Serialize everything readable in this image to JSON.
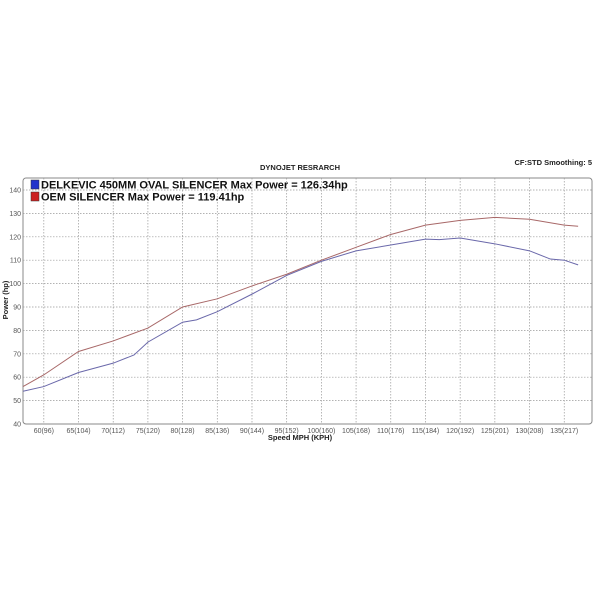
{
  "chart_data": {
    "type": "line",
    "title": "DYNOJET RESRARCH",
    "corner_note": "CF:STD Smoothing: 5",
    "xlabel": "Speed MPH (KPH)",
    "ylabel": "Power (hp)",
    "xlim": [
      57,
      139
    ],
    "ylim": [
      40,
      145
    ],
    "grid": true,
    "legend_placement": "top-left",
    "x_ticks": [
      {
        "v": 60,
        "label": "60(96)"
      },
      {
        "v": 65,
        "label": "65(104)"
      },
      {
        "v": 70,
        "label": "70(112)"
      },
      {
        "v": 75,
        "label": "75(120)"
      },
      {
        "v": 80,
        "label": "80(128)"
      },
      {
        "v": 85,
        "label": "85(136)"
      },
      {
        "v": 90,
        "label": "90(144)"
      },
      {
        "v": 95,
        "label": "95(152)"
      },
      {
        "v": 100,
        "label": "100(160)"
      },
      {
        "v": 105,
        "label": "105(168)"
      },
      {
        "v": 110,
        "label": "110(176)"
      },
      {
        "v": 115,
        "label": "115(184)"
      },
      {
        "v": 120,
        "label": "120(192)"
      },
      {
        "v": 125,
        "label": "125(201)"
      },
      {
        "v": 130,
        "label": "130(208)"
      },
      {
        "v": 135,
        "label": "135(217)"
      }
    ],
    "y_ticks": [
      "40",
      "50",
      "60",
      "70",
      "80",
      "90",
      "100",
      "110",
      "120",
      "130",
      "140"
    ],
    "legend": [
      {
        "label": "DELKEVIC 450MM OVAL SILENCER Max Power = 126.34hp",
        "swatch": "#2233cc"
      },
      {
        "label": "OEM SILENCER Max Power = 119.41hp",
        "swatch": "#cc2222"
      }
    ],
    "series": [
      {
        "color": "#a86868",
        "x": [
          57,
          60,
          65,
          70,
          75,
          80,
          85,
          90,
          95,
          100,
          105,
          110,
          115,
          120,
          125,
          130,
          135,
          137
        ],
        "y": [
          56,
          61,
          71,
          75.5,
          81,
          90,
          93.5,
          99,
          104,
          110,
          115.5,
          121,
          125,
          127,
          128.3,
          127.5,
          125,
          124.5
        ]
      },
      {
        "color": "#6a68aa",
        "x": [
          57,
          60,
          65,
          70,
          73,
          75,
          80,
          82,
          85,
          90,
          95,
          100,
          105,
          110,
          115,
          117,
          120,
          125,
          130,
          133,
          135,
          137
        ],
        "y": [
          54,
          56,
          62,
          66,
          69.5,
          75,
          83.5,
          84.5,
          88,
          95.5,
          103.5,
          109.5,
          114,
          116.5,
          119,
          118.8,
          119.5,
          117,
          114,
          110.5,
          110,
          108
        ]
      }
    ]
  }
}
